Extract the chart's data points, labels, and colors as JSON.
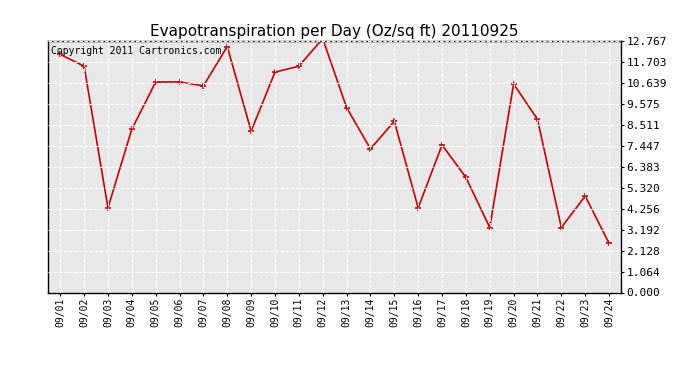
{
  "title": "Evapotranspiration per Day (Oz/sq ft) 20110925",
  "copyright": "Copyright 2011 Cartronics.com",
  "dates": [
    "09/01",
    "09/02",
    "09/03",
    "09/04",
    "09/05",
    "09/06",
    "09/07",
    "09/08",
    "09/09",
    "09/10",
    "09/11",
    "09/12",
    "09/13",
    "09/14",
    "09/15",
    "09/16",
    "09/17",
    "09/18",
    "09/19",
    "09/20",
    "09/21",
    "09/22",
    "09/23",
    "09/24"
  ],
  "values": [
    12.1,
    11.5,
    4.3,
    8.3,
    10.7,
    10.7,
    10.5,
    12.5,
    8.2,
    11.2,
    11.5,
    12.9,
    9.4,
    7.3,
    8.7,
    4.3,
    7.5,
    5.85,
    3.3,
    10.6,
    8.8,
    3.3,
    4.9,
    2.5
  ],
  "line_color": "#cc0000",
  "marker": "+",
  "marker_size": 5,
  "marker_linewidth": 1.2,
  "line_width": 1.2,
  "ylim": [
    0.0,
    12.767
  ],
  "yticks": [
    0.0,
    1.064,
    2.128,
    3.192,
    4.256,
    5.32,
    6.383,
    7.447,
    8.511,
    9.575,
    10.639,
    11.703,
    12.767
  ],
  "ytick_labels": [
    "0.000",
    "1.064",
    "2.128",
    "3.192",
    "4.256",
    "5.320",
    "6.383",
    "7.447",
    "8.511",
    "9.575",
    "10.639",
    "11.703",
    "12.767"
  ],
  "bg_color": "#ffffff",
  "plot_bg_color": "#e8e8e8",
  "grid_color": "#ffffff",
  "grid_linestyle": "--",
  "grid_linewidth": 0.7,
  "title_fontsize": 11,
  "copyright_fontsize": 7,
  "tick_fontsize": 7,
  "ytick_fontsize": 8
}
